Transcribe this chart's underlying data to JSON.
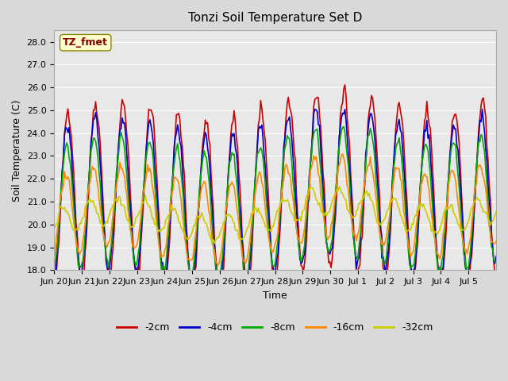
{
  "title": "Tonzi Soil Temperature Set D",
  "xlabel": "Time",
  "ylabel": "Soil Temperature (C)",
  "ylim": [
    18.0,
    28.5
  ],
  "yticks": [
    18.0,
    19.0,
    20.0,
    21.0,
    22.0,
    23.0,
    24.0,
    25.0,
    26.0,
    27.0,
    28.0
  ],
  "legend_labels": [
    "-2cm",
    "-4cm",
    "-8cm",
    "-16cm",
    "-32cm"
  ],
  "line_colors": [
    "#cc0000",
    "#0000cc",
    "#00aa00",
    "#ff8800",
    "#cccc00"
  ],
  "annotation_text": "TZ_fmet",
  "annotation_color": "#880000",
  "annotation_bg": "#ffffcc",
  "bg_color": "#e8e8e8",
  "plot_bg": "#e8e8e8",
  "grid_color": "#ffffff",
  "xtick_labels": [
    "Jun 20",
    "Jun 21",
    "Jun 22",
    "Jun 23",
    "Jun 24",
    "Jun 25",
    "Jun 26",
    "Jun 27",
    "Jun 28",
    "Jun 29",
    "Jun 30",
    "Jul 1",
    "Jul 2",
    "Jul 3",
    "Jul 4",
    "Jul 5"
  ],
  "n_points": 384
}
